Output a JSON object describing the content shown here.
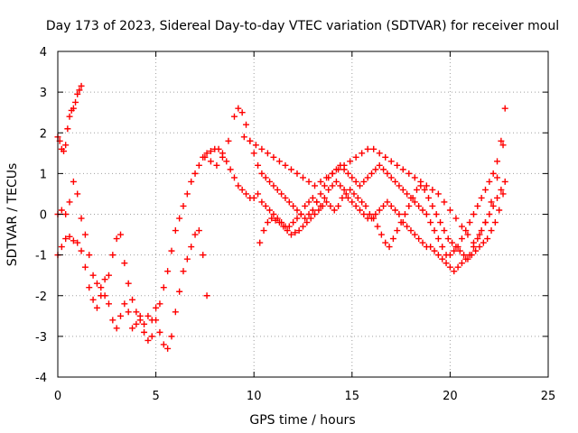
{
  "chart_data": {
    "type": "scatter",
    "title": "Day 173 of 2023, Sidereal Day-to-day VTEC variation (SDTVAR) for receiver moul",
    "xlabel": "GPS time / hours",
    "ylabel": "SDTVAR / TECUs",
    "xlim": [
      0,
      25
    ],
    "ylim": [
      -4,
      4
    ],
    "xticks": [
      0,
      5,
      10,
      15,
      20,
      25
    ],
    "yticks": [
      -4,
      -3,
      -2,
      -1,
      0,
      1,
      2,
      3,
      4
    ],
    "xtick_labels": [
      "0",
      "5",
      "10",
      "15",
      "20",
      "25"
    ],
    "ytick_labels": [
      "-4",
      "-3",
      "-2",
      "-1",
      "0",
      "1",
      "2",
      "3",
      "4"
    ],
    "grid": true,
    "marker": "+",
    "color": "#ff0000",
    "series": [
      {
        "name": "s1",
        "x": [
          0.0,
          0.1,
          0.2,
          0.3,
          0.4,
          0.5,
          0.6,
          0.7,
          0.8,
          0.9,
          1.0,
          1.1,
          1.2
        ],
        "y": [
          1.9,
          1.8,
          1.6,
          1.55,
          1.7,
          2.1,
          2.4,
          2.55,
          2.6,
          2.75,
          2.95,
          3.05,
          3.15
        ]
      },
      {
        "name": "s2",
        "x": [
          0.0,
          0.2,
          0.4,
          0.6,
          0.8,
          1.0,
          1.2,
          1.4,
          1.6,
          1.8,
          2.0,
          2.2,
          2.4,
          2.6,
          2.8,
          3.0,
          3.2,
          3.4,
          3.6,
          3.8,
          4.0,
          4.2,
          4.4,
          4.6,
          4.8,
          5.0,
          5.2,
          5.4,
          5.6,
          5.8,
          6.0,
          6.2,
          6.4,
          6.6,
          6.8,
          7.0,
          7.2,
          7.4,
          7.6
        ],
        "y": [
          0.0,
          0.1,
          0.0,
          0.3,
          0.8,
          0.5,
          -0.1,
          -0.5,
          -1.0,
          -1.5,
          -1.7,
          -1.8,
          -2.0,
          -1.5,
          -1.0,
          -0.6,
          -0.5,
          -1.2,
          -1.7,
          -2.1,
          -2.4,
          -2.6,
          -2.7,
          -2.5,
          -2.6,
          -2.3,
          -2.9,
          -3.2,
          -3.3,
          -3.0,
          -2.4,
          -1.9,
          -1.4,
          -1.1,
          -0.8,
          -0.5,
          -0.4,
          -1.0,
          -2.0
        ]
      },
      {
        "name": "s3",
        "x": [
          0.0,
          0.2,
          0.4,
          0.6,
          0.8,
          1.0,
          1.2,
          1.4,
          1.6,
          1.8,
          2.0,
          2.2,
          2.4,
          2.6,
          2.8,
          3.0,
          3.2,
          3.4,
          3.6,
          3.8,
          4.0,
          4.2,
          4.4,
          4.6,
          4.8,
          5.0,
          5.2,
          5.4,
          5.6,
          5.8,
          6.0,
          6.2,
          6.4,
          6.6,
          6.8,
          7.0,
          7.2,
          7.4,
          7.6,
          7.8,
          8.0,
          8.2,
          8.4,
          8.6,
          8.8,
          9.0,
          9.2,
          9.4,
          9.6,
          9.8,
          10.0,
          10.2,
          10.4,
          10.6,
          10.8,
          11.0,
          11.2,
          11.4,
          11.6,
          11.8,
          12.0,
          12.2,
          12.4,
          12.6,
          12.8,
          13.0,
          13.2,
          13.4,
          13.6,
          13.8,
          14.0,
          14.2,
          14.4,
          14.6,
          14.8,
          15.0,
          15.2,
          15.4,
          15.6,
          15.8,
          16.0,
          16.2,
          16.4,
          16.6,
          16.8,
          17.0,
          17.2,
          17.4,
          17.6,
          17.8,
          18.0,
          18.2,
          18.4,
          18.6,
          18.8,
          19.0,
          19.2,
          19.4,
          19.6,
          19.8,
          20.0,
          20.2,
          20.4,
          20.6,
          20.8,
          21.0,
          21.2,
          21.4,
          21.6,
          21.8,
          22.0,
          22.2,
          22.4,
          22.6,
          22.8
        ],
        "y": [
          -1.0,
          -0.8,
          -0.6,
          -0.55,
          -0.65,
          -0.7,
          -0.9,
          -1.3,
          -1.8,
          -2.1,
          -2.3,
          -2.0,
          -1.6,
          -2.2,
          -2.6,
          -2.8,
          -2.5,
          -2.2,
          -2.4,
          -2.8,
          -2.7,
          -2.5,
          -2.9,
          -3.1,
          -3.0,
          -2.6,
          -2.2,
          -1.8,
          -1.4,
          -0.9,
          -0.4,
          -0.1,
          0.2,
          0.5,
          0.8,
          1.0,
          1.2,
          1.4,
          1.5,
          1.55,
          1.6,
          1.6,
          1.5,
          1.3,
          1.1,
          0.9,
          0.7,
          0.6,
          0.5,
          0.4,
          0.4,
          0.5,
          0.3,
          0.2,
          0.1,
          0.0,
          -0.1,
          -0.2,
          -0.3,
          -0.3,
          -0.2,
          -0.1,
          0.0,
          0.2,
          0.3,
          0.4,
          0.3,
          0.2,
          0.4,
          0.6,
          0.7,
          0.8,
          0.7,
          0.6,
          0.4,
          0.3,
          0.2,
          0.1,
          0.0,
          -0.1,
          -0.1,
          0.0,
          0.1,
          0.2,
          0.3,
          0.2,
          0.1,
          0.0,
          -0.2,
          -0.3,
          -0.4,
          -0.5,
          -0.6,
          -0.7,
          -0.8,
          -0.8,
          -0.9,
          -1.0,
          -1.1,
          -1.2,
          -1.3,
          -1.4,
          -1.3,
          -1.2,
          -1.1,
          -1.0,
          -0.8,
          -0.6,
          -0.4,
          -0.2,
          0.0,
          0.2,
          0.4,
          0.6,
          0.8
        ]
      },
      {
        "name": "s4",
        "x": [
          7.5,
          7.8,
          8.1,
          8.4,
          8.7,
          9.0,
          9.2,
          9.4,
          9.6,
          9.8,
          10.0,
          10.2,
          10.4,
          10.6,
          10.8,
          11.0,
          11.2,
          11.4,
          11.6,
          11.8,
          12.0,
          12.2,
          12.4,
          12.6,
          12.8,
          13.0,
          13.2,
          13.4,
          13.6,
          13.8,
          14.0,
          14.2,
          14.4,
          14.6,
          14.8,
          15.0,
          15.2,
          15.4,
          15.6,
          15.8,
          16.0,
          16.2,
          16.4,
          16.6,
          16.8,
          17.0,
          17.2,
          17.4,
          17.6,
          17.8,
          18.0,
          18.2,
          18.4,
          18.6,
          18.8,
          19.0,
          19.2,
          19.4,
          19.6,
          19.8,
          20.0,
          20.2,
          20.4,
          20.6,
          20.8,
          21.0,
          21.2,
          21.4,
          21.6,
          21.8,
          22.0,
          22.2,
          22.4,
          22.6,
          22.8
        ],
        "y": [
          1.4,
          1.3,
          1.2,
          1.4,
          1.8,
          2.4,
          2.6,
          2.5,
          2.2,
          1.8,
          1.5,
          1.2,
          1.0,
          0.9,
          0.8,
          0.7,
          0.6,
          0.5,
          0.4,
          0.3,
          0.2,
          0.1,
          0.0,
          -0.1,
          0.0,
          0.1,
          0.3,
          0.5,
          0.7,
          0.9,
          1.0,
          1.1,
          1.2,
          1.1,
          1.0,
          0.9,
          0.8,
          0.7,
          0.8,
          0.9,
          1.0,
          1.1,
          1.2,
          1.1,
          1.0,
          0.9,
          0.8,
          0.7,
          0.6,
          0.5,
          0.4,
          0.3,
          0.2,
          0.1,
          0.0,
          -0.2,
          -0.4,
          -0.6,
          -0.8,
          -1.0,
          -1.0,
          -0.9,
          -0.8,
          -0.6,
          -0.4,
          -0.2,
          0.0,
          0.2,
          0.4,
          0.6,
          0.8,
          1.0,
          1.3,
          1.8,
          2.6
        ]
      },
      {
        "name": "s5",
        "x": [
          10.3,
          10.5,
          10.7,
          10.9,
          11.1,
          11.3,
          11.5,
          11.7,
          11.9,
          12.1,
          12.3,
          12.5,
          12.7,
          12.9,
          13.1,
          13.3,
          13.5,
          13.7,
          13.9,
          14.1,
          14.3,
          14.5,
          14.7,
          14.9,
          15.1,
          15.3,
          15.5,
          15.7,
          15.9,
          16.1,
          16.3,
          16.5,
          16.7,
          16.9,
          17.1,
          17.3,
          17.5,
          17.7,
          17.9,
          18.1,
          18.3,
          18.5,
          18.7,
          18.9,
          19.1,
          19.3,
          19.5,
          19.7,
          19.9,
          20.1,
          20.3,
          20.5,
          20.7,
          20.9,
          21.1,
          21.3,
          21.5,
          21.7,
          21.9,
          22.1,
          22.3,
          22.5,
          22.7
        ],
        "y": [
          -0.7,
          -0.4,
          -0.2,
          -0.1,
          -0.15,
          -0.2,
          -0.3,
          -0.4,
          -0.5,
          -0.45,
          -0.4,
          -0.3,
          -0.2,
          -0.1,
          0.0,
          0.1,
          0.2,
          0.3,
          0.2,
          0.1,
          0.2,
          0.4,
          0.5,
          0.6,
          0.5,
          0.4,
          0.3,
          0.2,
          0.0,
          -0.1,
          -0.3,
          -0.5,
          -0.7,
          -0.8,
          -0.6,
          -0.4,
          -0.2,
          0.0,
          0.2,
          0.4,
          0.6,
          0.7,
          0.6,
          0.4,
          0.2,
          0.0,
          -0.2,
          -0.4,
          -0.6,
          -0.7,
          -0.8,
          -0.9,
          -1.0,
          -1.1,
          -1.0,
          -0.9,
          -0.8,
          -0.7,
          -0.6,
          -0.4,
          -0.2,
          0.1,
          0.5
        ]
      },
      {
        "name": "s6",
        "x": [
          9.5,
          9.8,
          10.1,
          10.4,
          10.7,
          11.0,
          11.3,
          11.6,
          11.9,
          12.2,
          12.5,
          12.8,
          13.1,
          13.4,
          13.7,
          14.0,
          14.3,
          14.6,
          14.9,
          15.2,
          15.5,
          15.8,
          16.1,
          16.4,
          16.7,
          17.0,
          17.3,
          17.6,
          17.9,
          18.2,
          18.5,
          18.8,
          19.1,
          19.4,
          19.7,
          20.0,
          20.3,
          20.6,
          20.9,
          21.2,
          21.5,
          21.8,
          22.1,
          22.4,
          22.7
        ],
        "y": [
          1.9,
          1.8,
          1.7,
          1.6,
          1.5,
          1.4,
          1.3,
          1.2,
          1.1,
          1.0,
          0.9,
          0.8,
          0.7,
          0.8,
          0.9,
          1.0,
          1.1,
          1.2,
          1.3,
          1.4,
          1.5,
          1.6,
          1.6,
          1.5,
          1.4,
          1.3,
          1.2,
          1.1,
          1.0,
          0.9,
          0.8,
          0.7,
          0.6,
          0.5,
          0.3,
          0.1,
          -0.1,
          -0.3,
          -0.5,
          -0.7,
          -0.5,
          -0.2,
          0.3,
          0.9,
          1.7
        ]
      }
    ]
  }
}
